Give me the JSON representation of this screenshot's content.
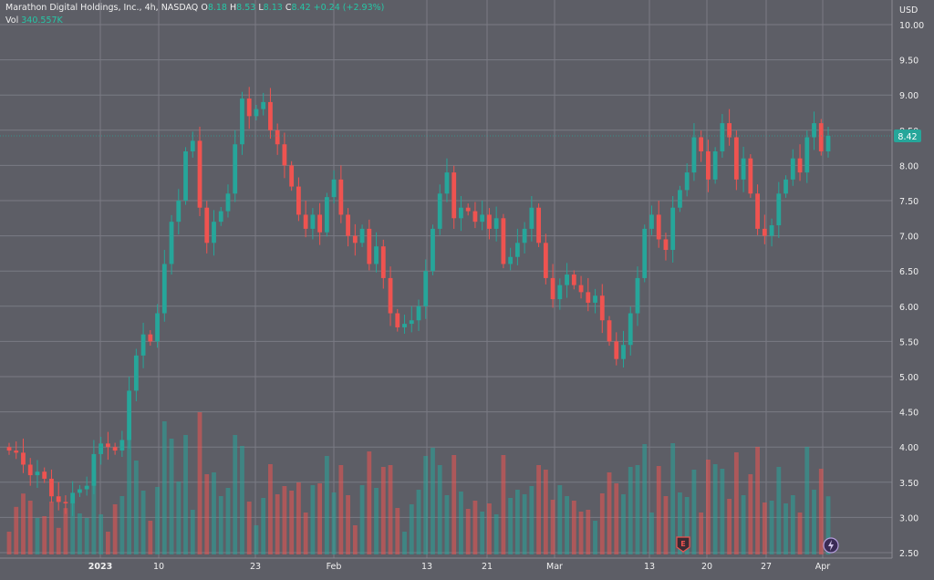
{
  "header": {
    "symbol": "Marathon Digital Holdings, Inc., 4h, NASDAQ",
    "o_label": "O",
    "o_value": "8.18",
    "h_label": "H",
    "h_value": "8.53",
    "l_label": "L",
    "l_value": "8.13",
    "c_label": "C",
    "c_value": "8.42",
    "change": "+0.24 (+2.93%)",
    "vol_label": "Vol",
    "vol_value": "340.557K"
  },
  "colors": {
    "background": "#5d5e66",
    "grid": "#7a7b84",
    "up": "#26a69a",
    "down": "#ef5350",
    "up_volume": "#26a69a",
    "down_volume": "#ef5350",
    "price_tag": "#26a69a"
  },
  "icons": [
    "earnings-icon",
    "dividend-flash-icon"
  ],
  "chart_data": {
    "type": "candlestick",
    "currency_label": "USD",
    "y_ticks": [
      "10.00",
      "9.50",
      "9.00",
      "8.50",
      "8.00",
      "7.50",
      "7.00",
      "6.50",
      "6.00",
      "5.50",
      "5.00",
      "4.50",
      "4.00",
      "3.50",
      "3.00",
      "2.50"
    ],
    "y_range": [
      2.5,
      10.1
    ],
    "x_labels": [
      "2023",
      "10",
      "23",
      "Feb",
      "13",
      "21",
      "Mar",
      "13",
      "20",
      "27",
      "Apr"
    ],
    "last_price": "8.42",
    "closes": [
      3.95,
      3.92,
      3.75,
      3.6,
      3.65,
      3.55,
      3.3,
      3.22,
      3.2,
      3.35,
      3.4,
      3.45,
      3.9,
      4.05,
      4.0,
      3.95,
      4.1,
      4.8,
      5.3,
      5.6,
      5.5,
      5.9,
      6.6,
      7.2,
      7.5,
      8.2,
      8.35,
      7.4,
      6.9,
      7.2,
      7.35,
      7.6,
      8.3,
      8.95,
      8.7,
      8.8,
      8.9,
      8.5,
      8.3,
      8.0,
      7.7,
      7.3,
      7.1,
      7.3,
      7.05,
      7.55,
      7.8,
      7.3,
      7.0,
      6.9,
      7.1,
      6.6,
      6.85,
      6.4,
      5.9,
      5.7,
      5.75,
      5.8,
      6.0,
      6.5,
      7.1,
      7.6,
      7.9,
      7.25,
      7.4,
      7.35,
      7.2,
      7.3,
      7.1,
      7.25,
      6.6,
      6.7,
      6.9,
      7.1,
      7.4,
      6.9,
      6.4,
      6.1,
      6.3,
      6.45,
      6.3,
      6.2,
      6.05,
      6.15,
      5.8,
      5.5,
      5.25,
      5.45,
      5.9,
      6.4,
      7.1,
      7.3,
      6.95,
      6.8,
      7.4,
      7.65,
      7.9,
      8.4,
      8.2,
      7.8,
      8.2,
      8.6,
      8.4,
      7.8,
      8.1,
      7.6,
      7.1,
      7.0,
      7.15,
      7.6,
      7.8,
      8.1,
      7.9,
      8.4,
      8.6,
      8.2,
      8.42
    ]
  }
}
